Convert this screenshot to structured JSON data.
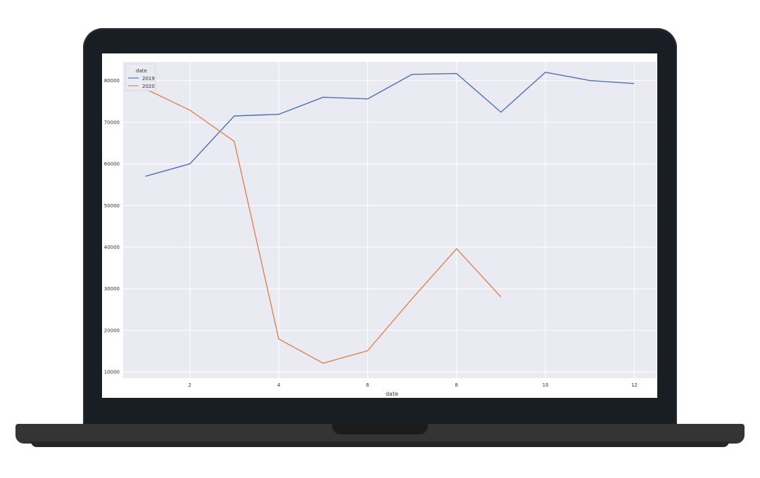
{
  "chart_data": {
    "type": "line",
    "xlabel": "date",
    "ylabel": "",
    "x": [
      1,
      2,
      3,
      4,
      5,
      6,
      7,
      8,
      9,
      10,
      11,
      12
    ],
    "xticks": [
      2,
      4,
      6,
      8,
      10,
      12
    ],
    "yticks": [
      10000,
      20000,
      30000,
      40000,
      50000,
      60000,
      70000,
      80000
    ],
    "xlim": [
      0.5,
      12.5
    ],
    "ylim": [
      8500,
      84500
    ],
    "grid": true,
    "legend": {
      "title": "date",
      "position": "top-left"
    },
    "series": [
      {
        "name": "2019",
        "color": "#4c72b0",
        "values": [
          57000,
          60000,
          71500,
          71900,
          76000,
          75600,
          81500,
          81700,
          72400,
          82000,
          80000,
          79300
        ]
      },
      {
        "name": "2020",
        "color": "#dd8452",
        "values": [
          78000,
          72900,
          65400,
          17900,
          12100,
          15100,
          27600,
          39600,
          28000,
          null,
          null,
          null
        ]
      }
    ]
  }
}
